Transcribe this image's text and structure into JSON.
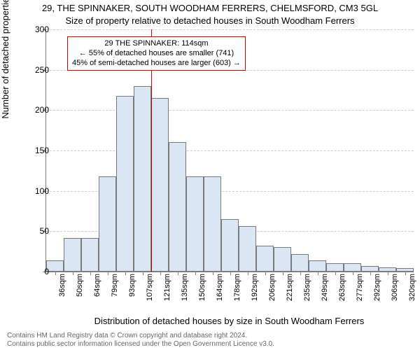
{
  "titles": {
    "line1": "29, THE SPINNAKER, SOUTH WOODHAM FERRERS, CHELMSFORD, CM3 5GL",
    "line2": "Size of property relative to detached houses in South Woodham Ferrers"
  },
  "ylabel": "Number of detached properties",
  "xlabel": "Distribution of detached houses by size in South Woodham Ferrers",
  "chart": {
    "type": "histogram",
    "ylim": [
      0,
      300
    ],
    "ytick_step": 50,
    "yticks": [
      0,
      50,
      100,
      150,
      200,
      250,
      300
    ],
    "x_categories": [
      "36sqm",
      "50sqm",
      "64sqm",
      "79sqm",
      "93sqm",
      "107sqm",
      "121sqm",
      "135sqm",
      "150sqm",
      "164sqm",
      "178sqm",
      "192sqm",
      "206sqm",
      "221sqm",
      "235sqm",
      "249sqm",
      "263sqm",
      "277sqm",
      "292sqm",
      "306sqm",
      "320sqm"
    ],
    "values": [
      14,
      42,
      42,
      118,
      218,
      230,
      215,
      160,
      118,
      118,
      65,
      56,
      32,
      30,
      22,
      14,
      10,
      10,
      7,
      5,
      4
    ],
    "bar_fill": "#dbe6f5",
    "bar_border": "#7a7a7a",
    "background": "#ffffff",
    "grid_color": "#cccccc",
    "axis_color": "#808080",
    "tick_fontsize": 11,
    "label_fontsize": 13
  },
  "reference": {
    "x_index_after": 6,
    "color": "#cc0000"
  },
  "annotation": {
    "line1": "29 THE SPINNAKER: 114sqm",
    "line2": "← 55% of detached houses are smaller (741)",
    "line3": "45% of semi-detached houses are larger (603) →",
    "border_color": "#cc0000"
  },
  "footer": {
    "line1": "Contains HM Land Registry data © Crown copyright and database right 2024.",
    "line2": "Contains public sector information licensed under the Open Government Licence v3.0."
  }
}
